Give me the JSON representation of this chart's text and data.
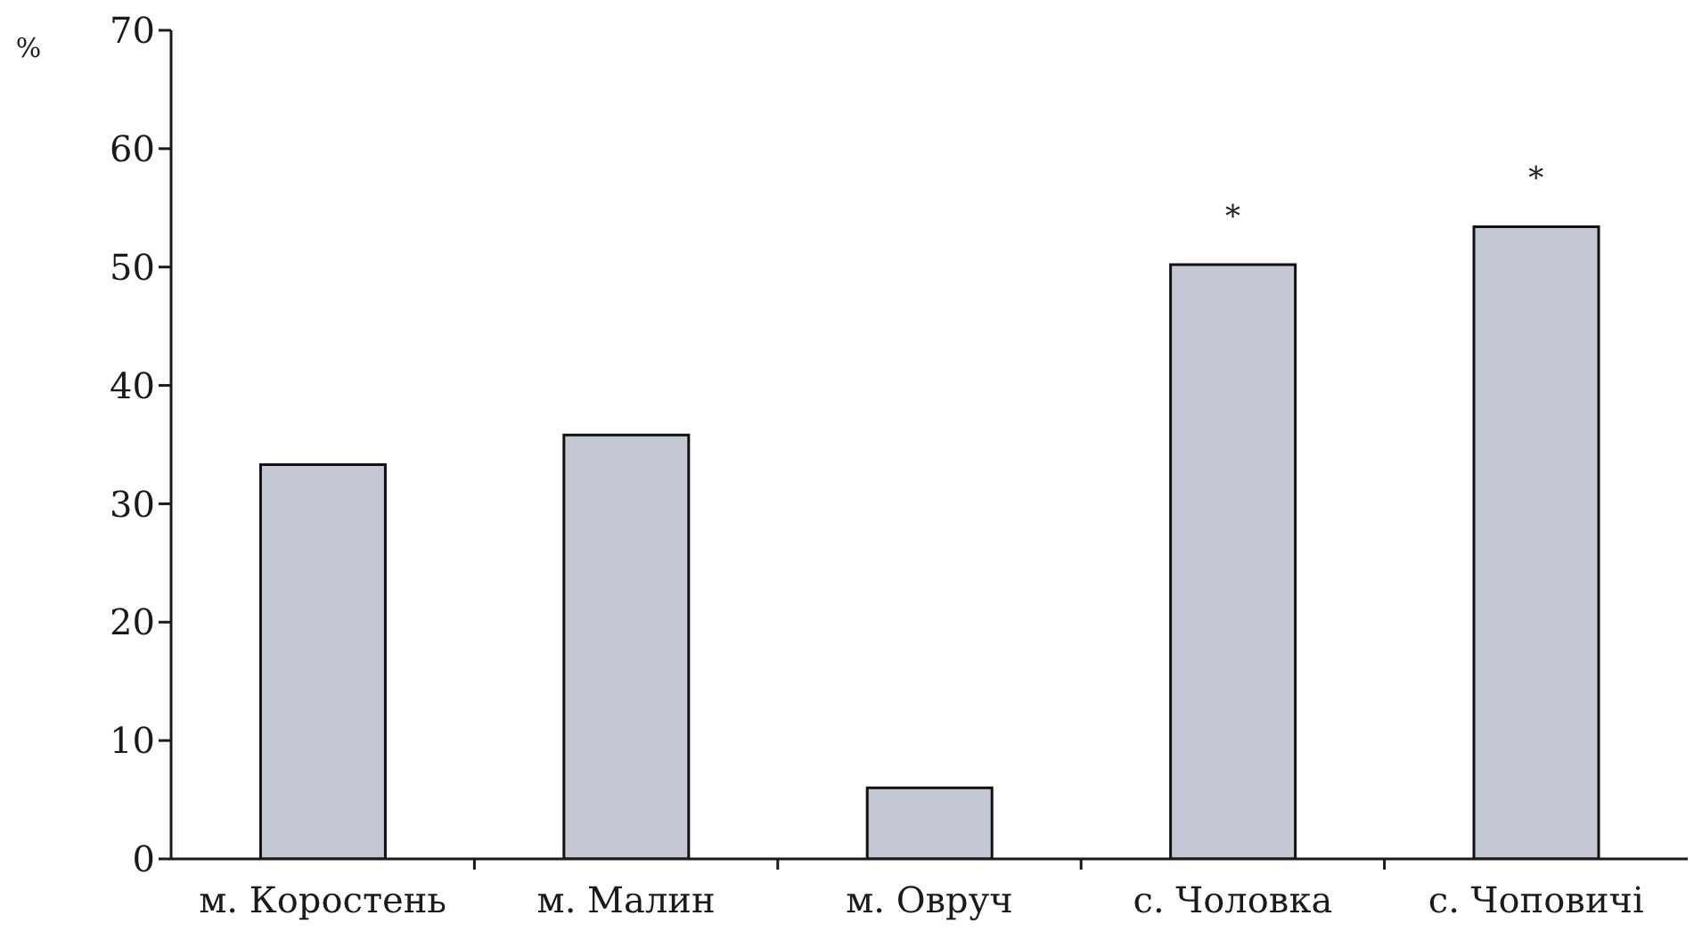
{
  "chart_data": {
    "type": "bar",
    "ylabel": "%",
    "categories": [
      "м. Коростень",
      "м. Малин",
      "м. Овруч",
      "с. Чоловка",
      "с. Чоповичі"
    ],
    "values": [
      33.3,
      35.8,
      6.0,
      50.2,
      53.4
    ],
    "color": "#c3c8d4",
    "ylim": [
      0,
      70
    ],
    "yticks": [
      0,
      10,
      20,
      30,
      40,
      50,
      60,
      70
    ],
    "annotations": [
      {
        "text": "*",
        "x": "с. Чоловка",
        "y": 50.2
      },
      {
        "text": "*",
        "x": "с. Чоповичі",
        "y": 53.4
      }
    ]
  }
}
